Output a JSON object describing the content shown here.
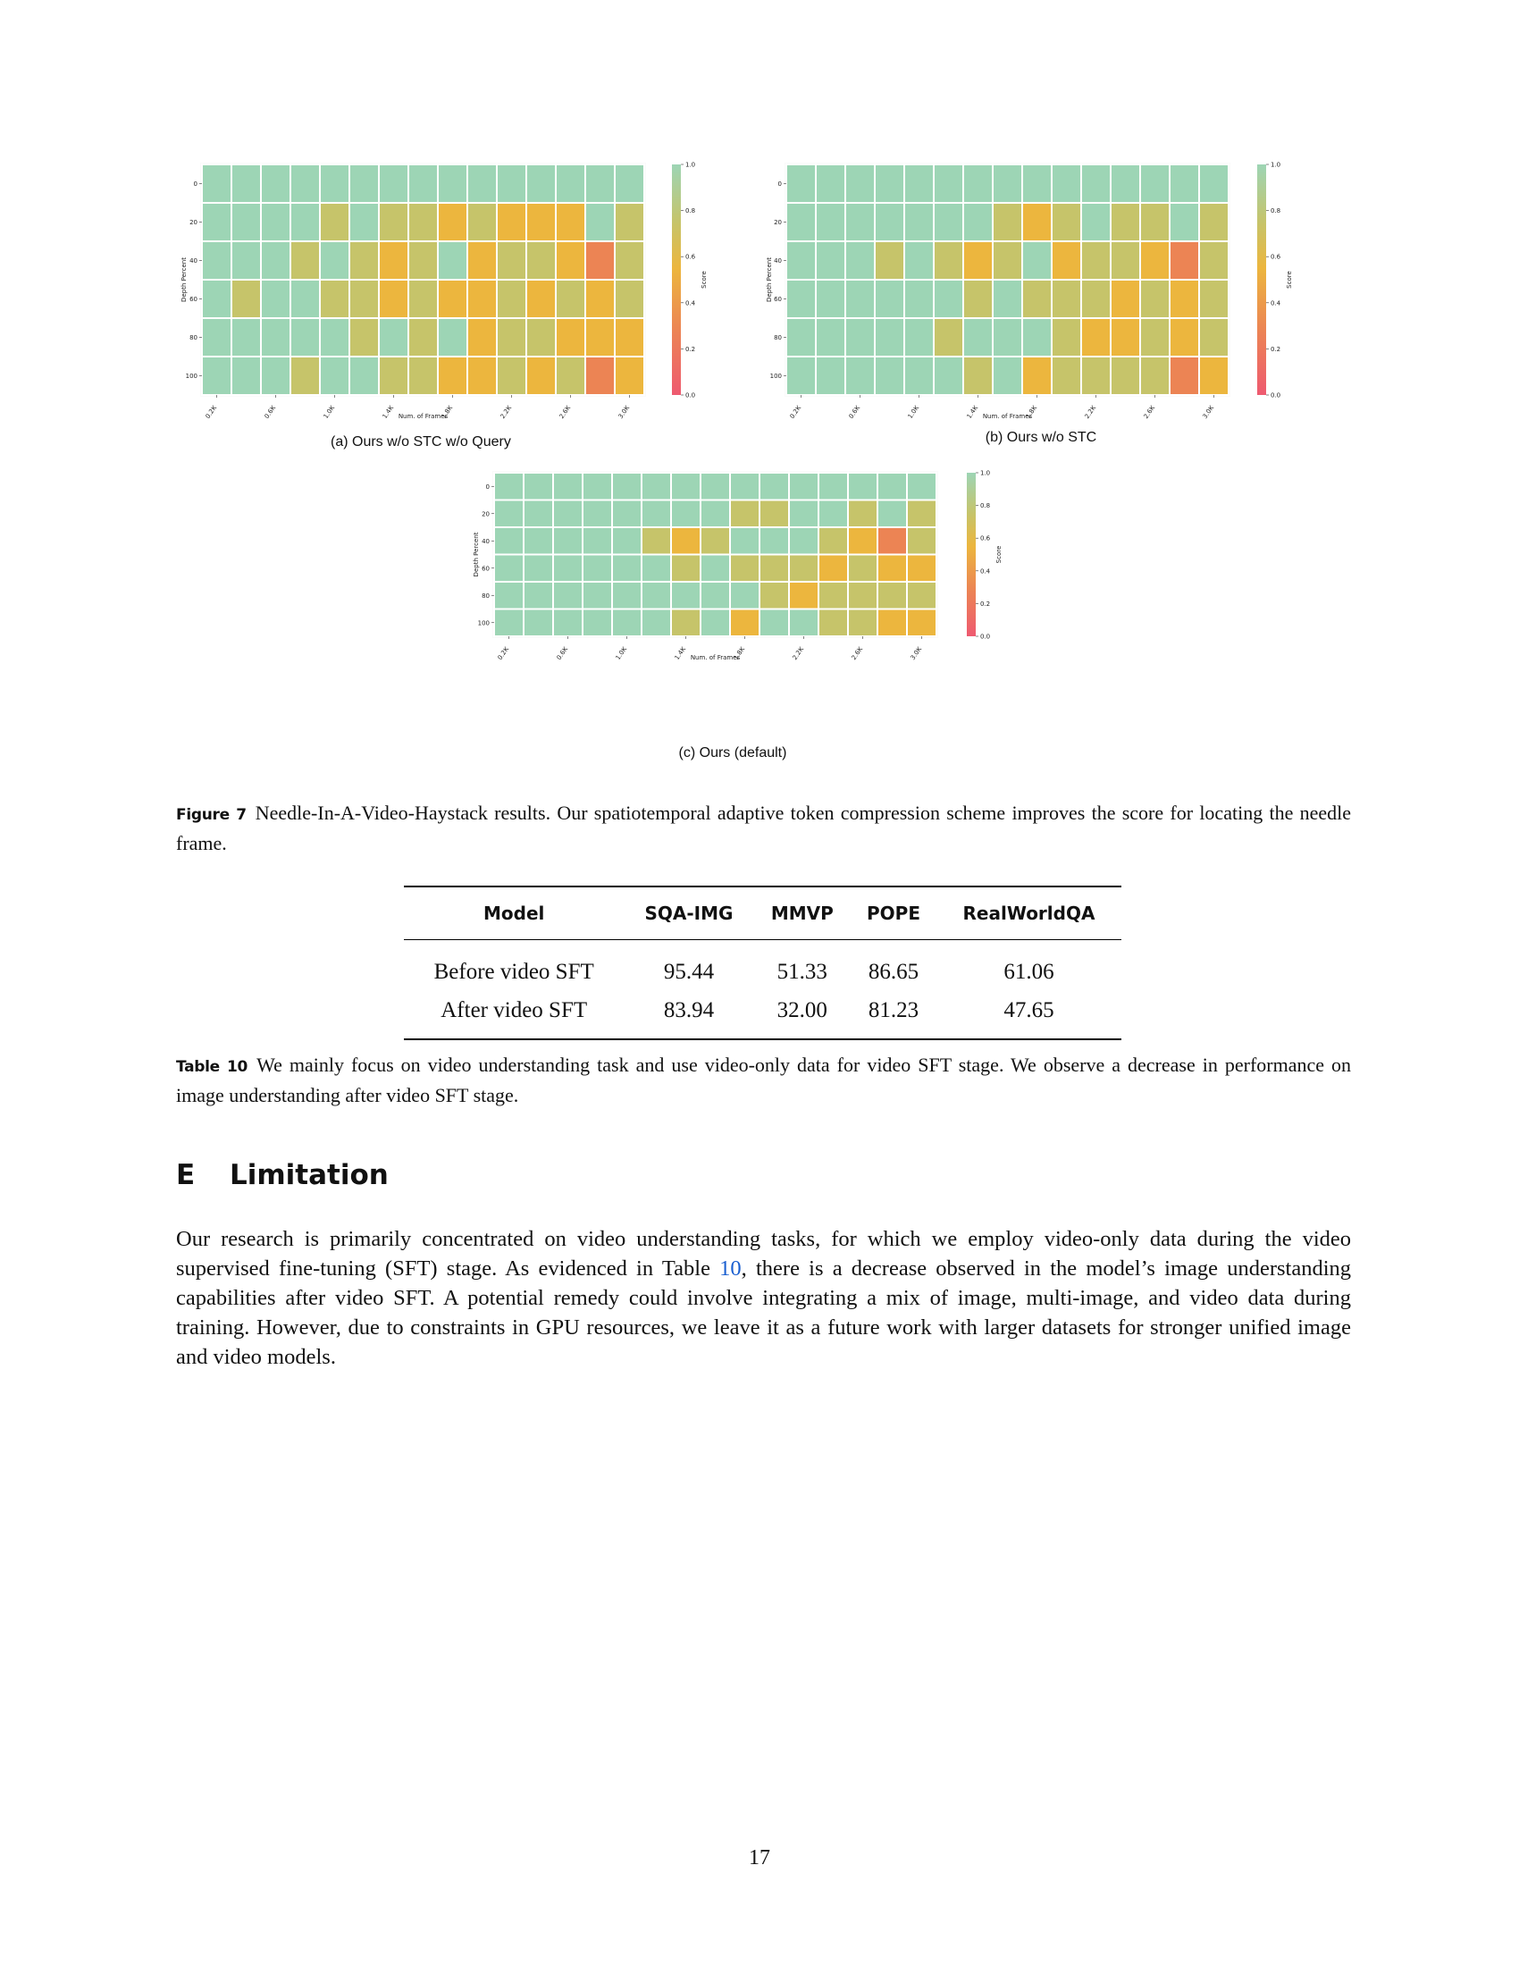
{
  "figure": {
    "label": "Figure 7",
    "caption": "Needle-In-A-Video-Haystack results. Our spatiotemporal adaptive token compression scheme improves the score for locating the needle frame."
  },
  "heatmaps": {
    "shared": {
      "x_ticks": [
        "0.2K",
        "0.6K",
        "1.0K",
        "1.4K",
        "1.8K",
        "2.2K",
        "2.6K",
        "3.0K"
      ],
      "y_ticks": [
        "0",
        "20",
        "40",
        "60",
        "80",
        "100"
      ],
      "xlabel": "Num. of Frames",
      "ylabel": "Depth Percent",
      "colorbar_label": "Score",
      "colorbar_ticks": [
        "1.0",
        "0.8",
        "0.6",
        "0.4",
        "0.2",
        "0.0"
      ],
      "colors": {
        "high": "#9dd5b5",
        "mid_high": "#c6c46a",
        "mid": "#ecb63e",
        "low": "#ec8454",
        "min": "#ee5a70"
      }
    }
  },
  "chart_data": [
    {
      "type": "heatmap",
      "subcaption": "(a) Ours w/o STC w/o Query",
      "xlabel": "Num. of Frames",
      "ylabel": "Depth Percent",
      "colorbar_label": "Score",
      "value_range": [
        0.0,
        1.0
      ],
      "x_ticks": [
        "0.2K",
        "0.6K",
        "1.0K",
        "1.4K",
        "1.8K",
        "2.2K",
        "2.6K",
        "3.0K"
      ],
      "y_ticks": [
        "0",
        "20",
        "40",
        "60",
        "80",
        "100"
      ],
      "values": [
        [
          1,
          1,
          1,
          1,
          1,
          1,
          1,
          1,
          1,
          1,
          1,
          1,
          1,
          1,
          1
        ],
        [
          1,
          1,
          1,
          1,
          0.8,
          1,
          0.8,
          0.8,
          0.6,
          0.8,
          0.6,
          0.6,
          0.6,
          1,
          0.8
        ],
        [
          1,
          1,
          1,
          0.8,
          1,
          0.8,
          0.6,
          0.8,
          1,
          0.6,
          0.8,
          0.8,
          0.6,
          0.4,
          0.8
        ],
        [
          1,
          0.8,
          1,
          1,
          0.8,
          0.8,
          0.6,
          0.8,
          0.6,
          0.6,
          0.8,
          0.6,
          0.8,
          0.6,
          0.8
        ],
        [
          1,
          1,
          1,
          1,
          1,
          0.8,
          1,
          0.8,
          1,
          0.6,
          0.8,
          0.8,
          0.6,
          0.6,
          0.6
        ],
        [
          1,
          1,
          1,
          0.8,
          1,
          1,
          0.8,
          0.8,
          0.6,
          0.6,
          0.8,
          0.6,
          0.8,
          0.4,
          0.6
        ]
      ]
    },
    {
      "type": "heatmap",
      "subcaption": "(b) Ours w/o STC",
      "xlabel": "Num. of Frames",
      "ylabel": "Depth Percent",
      "colorbar_label": "Score",
      "value_range": [
        0.0,
        1.0
      ],
      "x_ticks": [
        "0.2K",
        "0.6K",
        "1.0K",
        "1.4K",
        "1.8K",
        "2.2K",
        "2.6K",
        "3.0K"
      ],
      "y_ticks": [
        "0",
        "20",
        "40",
        "60",
        "80",
        "100"
      ],
      "values": [
        [
          1,
          1,
          1,
          1,
          1,
          1,
          1,
          1,
          1,
          1,
          1,
          1,
          1,
          1,
          1
        ],
        [
          1,
          1,
          1,
          1,
          1,
          1,
          1,
          0.8,
          0.6,
          0.8,
          1,
          0.8,
          0.8,
          1,
          0.8
        ],
        [
          1,
          1,
          1,
          0.8,
          1,
          0.8,
          0.6,
          0.8,
          1,
          0.6,
          0.8,
          0.8,
          0.6,
          0.4,
          0.8
        ],
        [
          1,
          1,
          1,
          1,
          1,
          1,
          0.8,
          1,
          0.8,
          0.8,
          0.8,
          0.6,
          0.8,
          0.6,
          0.8
        ],
        [
          1,
          1,
          1,
          1,
          1,
          0.8,
          1,
          1,
          1,
          0.8,
          0.6,
          0.6,
          0.8,
          0.6,
          0.8
        ],
        [
          1,
          1,
          1,
          1,
          1,
          1,
          0.8,
          1,
          0.6,
          0.8,
          0.8,
          0.8,
          0.8,
          0.4,
          0.6
        ]
      ]
    },
    {
      "type": "heatmap",
      "subcaption": "(c) Ours (default)",
      "xlabel": "Num. of Frames",
      "ylabel": "Depth Percent",
      "colorbar_label": "Score",
      "value_range": [
        0.0,
        1.0
      ],
      "x_ticks": [
        "0.2K",
        "0.6K",
        "1.0K",
        "1.4K",
        "1.8K",
        "2.2K",
        "2.6K",
        "3.0K"
      ],
      "y_ticks": [
        "0",
        "20",
        "40",
        "60",
        "80",
        "100"
      ],
      "values": [
        [
          1,
          1,
          1,
          1,
          1,
          1,
          1,
          1,
          1,
          1,
          1,
          1,
          1,
          1,
          1
        ],
        [
          1,
          1,
          1,
          1,
          1,
          1,
          1,
          1,
          0.8,
          0.8,
          1,
          1,
          0.8,
          1,
          0.8
        ],
        [
          1,
          1,
          1,
          1,
          1,
          0.8,
          0.6,
          0.8,
          1,
          1,
          1,
          0.8,
          0.6,
          0.4,
          0.8
        ],
        [
          1,
          1,
          1,
          1,
          1,
          1,
          0.8,
          1,
          0.8,
          0.8,
          0.8,
          0.6,
          0.8,
          0.6,
          0.6
        ],
        [
          1,
          1,
          1,
          1,
          1,
          1,
          1,
          1,
          1,
          0.8,
          0.6,
          0.8,
          0.8,
          0.8,
          0.8
        ],
        [
          1,
          1,
          1,
          1,
          1,
          1,
          0.8,
          1,
          0.6,
          1,
          1,
          0.8,
          0.8,
          0.6,
          0.6
        ]
      ]
    }
  ],
  "table": {
    "label": "Table 10",
    "columns": [
      "Model",
      "SQA-IMG",
      "MMVP",
      "POPE",
      "RealWorldQA"
    ],
    "rows": [
      [
        "Before video SFT",
        "95.44",
        "51.33",
        "86.65",
        "61.06"
      ],
      [
        "After video SFT",
        "83.94",
        "32.00",
        "81.23",
        "47.65"
      ]
    ],
    "caption": "We mainly focus on video understanding task and use video-only data for video SFT stage. We observe a decrease in performance on image understanding after video SFT stage."
  },
  "section": {
    "number": "E",
    "title": "Limitation",
    "para_before_ref": "Our research is primarily concentrated on video understanding tasks, for which we employ video-only data during the video supervised fine-tuning (SFT) stage. As evidenced in Table ",
    "ref": "10",
    "para_after_ref": ", there is a decrease observed in the model’s image understanding capabilities after video SFT. A potential remedy could involve integrating a mix of image, multi-image, and video data during training. However, due to constraints in GPU resources, we leave it as a future work with larger datasets for stronger unified image and video models."
  },
  "page_number": "17"
}
